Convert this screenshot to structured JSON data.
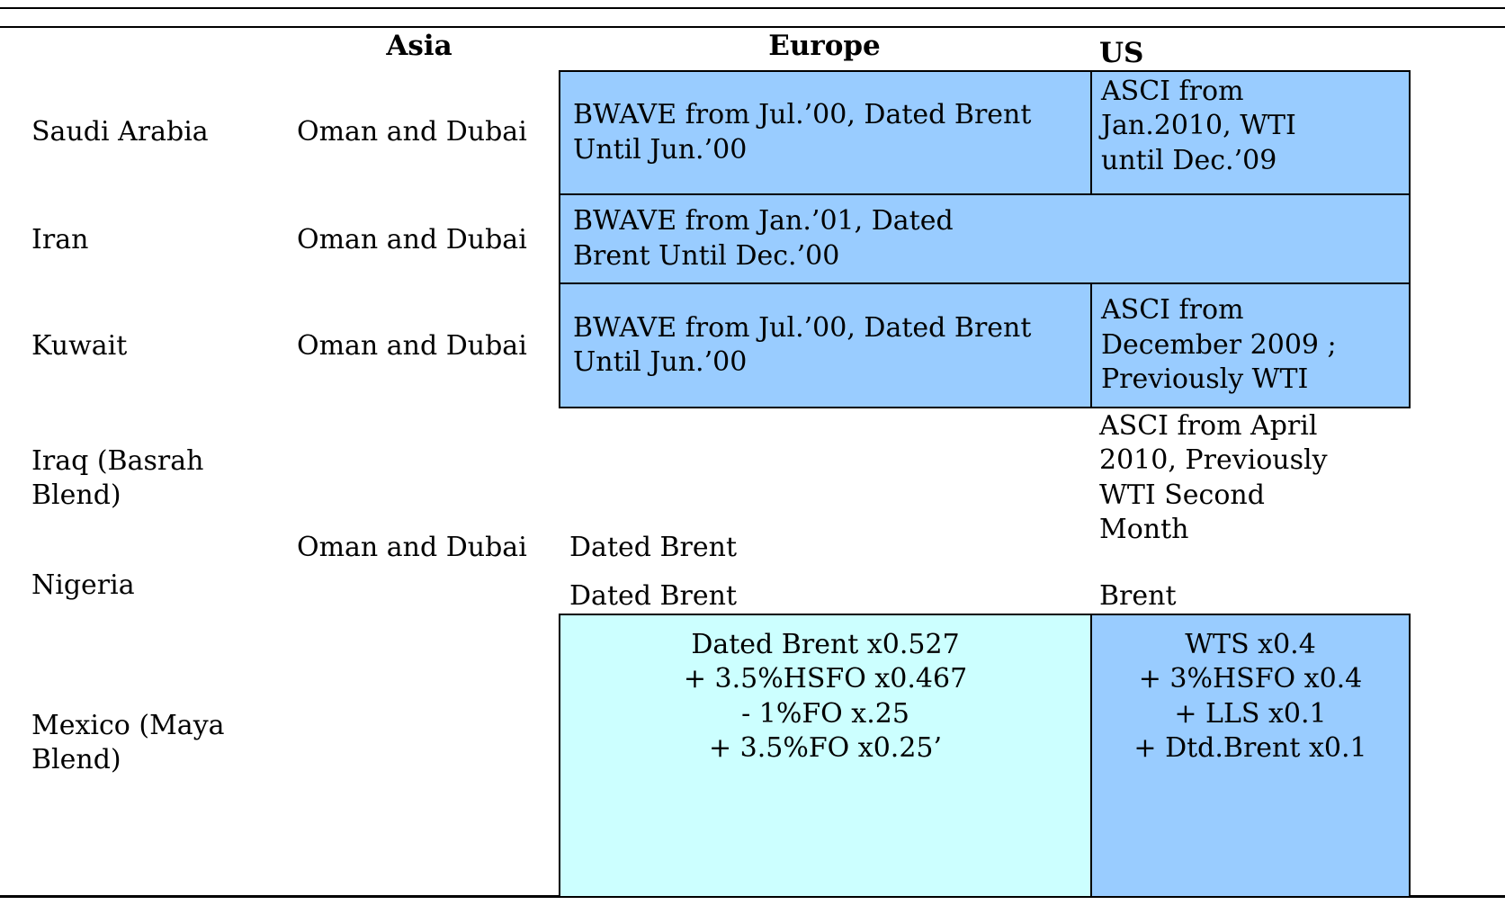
{
  "colors": {
    "cell_blue": "#99CCFF",
    "cell_cyan": "#CCFFFF",
    "line": "#000000"
  },
  "headers": {
    "asia": "Asia",
    "europe": "Europe",
    "us": "US"
  },
  "rows": {
    "saudi": {
      "country": "Saudi Arabia",
      "asia": "Oman and Dubai",
      "europe": "BWAVE from Jul.’00, Dated Brent\nUntil Jun.’00",
      "us": "ASCI from\nJan.2010, WTI\nuntil Dec.’09"
    },
    "iran": {
      "country": "Iran",
      "asia": "Oman and Dubai",
      "europe_us": "BWAVE from Jan.’01, Dated\nBrent Until Dec.’00"
    },
    "kuwait": {
      "country": "Kuwait",
      "asia": "Oman and Dubai",
      "europe": "BWAVE from Jul.’00, Dated Brent\nUntil Jun.’00",
      "us": "ASCI from\nDecember 2009 ;\nPreviously WTI"
    },
    "iraq": {
      "country": "Iraq (Basrah\nBlend)",
      "europe": "Dated Brent",
      "us": "ASCI from April\n2010, Previously\nWTI Second\nMonth"
    },
    "iraq_nigeria": {
      "asia": "Oman and Dubai"
    },
    "nigeria": {
      "country": "Nigeria",
      "europe": "Dated Brent",
      "us": "Brent"
    },
    "mexico": {
      "country": "Mexico (Maya\nBlend)",
      "europe": "Dated Brent x0.527\n+ 3.5%HSFO x0.467\n- 1%FO x.25\n+ 3.5%FO x0.25’",
      "us": "WTS x0.4\n+ 3%HSFO x0.4\n+ LLS x0.1\n+ Dtd.Brent x0.1"
    }
  }
}
